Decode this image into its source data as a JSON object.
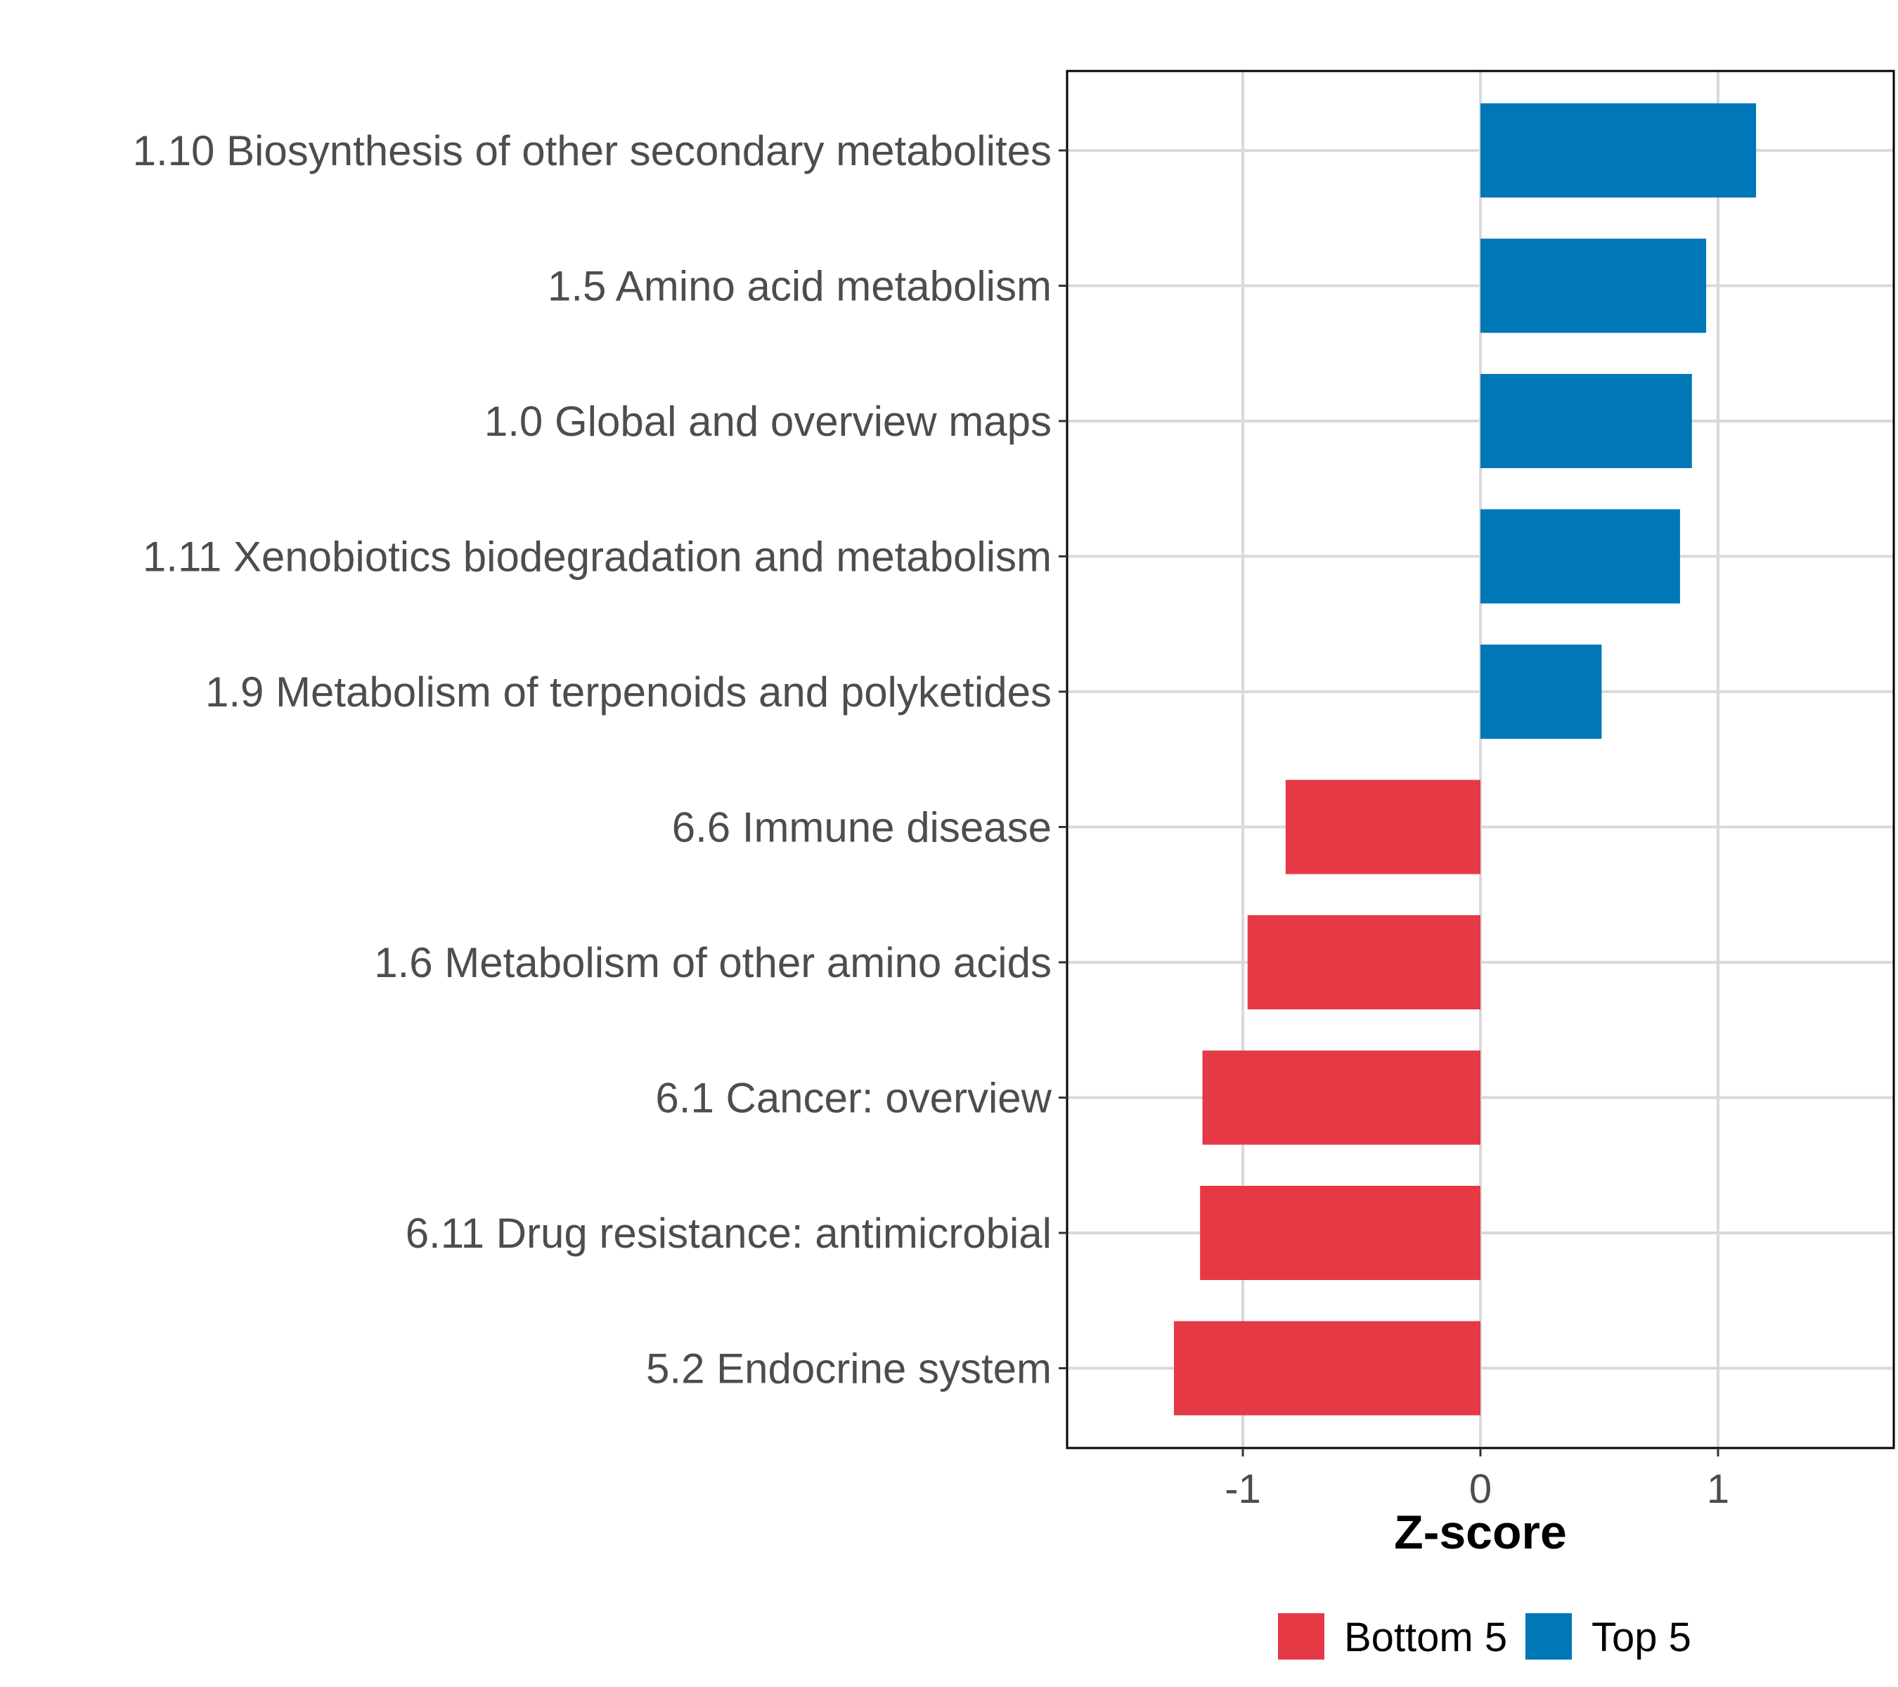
{
  "chart_data": {
    "type": "bar",
    "orientation": "horizontal",
    "title": "",
    "xlabel": "Z-score",
    "ylabel": "",
    "xlim": [
      -1.75,
      1.75
    ],
    "xticks": [
      -1,
      0,
      1
    ],
    "xtick_labels": [
      "-1",
      "0",
      "1"
    ],
    "grid": true,
    "legend_position": "bottom",
    "categories": [
      "1.10 Biosynthesis of other secondary metabolites",
      "1.5 Amino acid metabolism",
      "1.0 Global and overview maps",
      "1.11 Xenobiotics biodegradation and metabolism",
      "1.9 Metabolism of terpenoids and polyketides",
      "6.6 Immune disease",
      "1.6 Metabolism of other amino acids",
      "6.1 Cancer: overview",
      "6.11 Drug resistance: antimicrobial",
      "5.2 Endocrine system"
    ],
    "values": [
      1.16,
      0.95,
      0.89,
      0.84,
      0.51,
      -0.82,
      -0.98,
      -1.17,
      -1.18,
      -1.29
    ],
    "groups": [
      "Top 5",
      "Top 5",
      "Top 5",
      "Top 5",
      "Top 5",
      "Bottom 5",
      "Bottom 5",
      "Bottom 5",
      "Bottom 5",
      "Bottom 5"
    ],
    "legend": [
      {
        "name": "Bottom 5",
        "color": "#e63946"
      },
      {
        "name": "Top 5",
        "color": "#0077b6"
      }
    ]
  }
}
